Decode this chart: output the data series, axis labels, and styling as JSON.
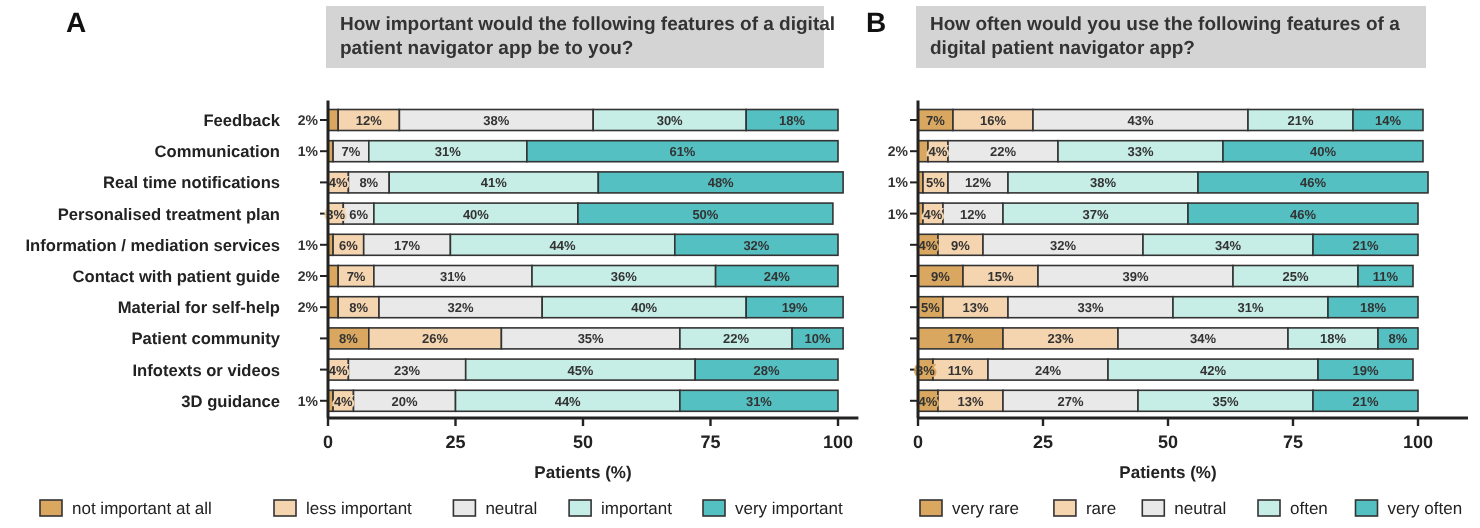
{
  "chart_data": [
    {
      "type": "bar",
      "orientation": "horizontal",
      "stacked": true,
      "title": "A",
      "subtitle": "How important would the following features of a digital patient navigator app be to you?",
      "xlabel": "Patients (%)",
      "categories": [
        "Feedback",
        "Communication",
        "Real time notifications",
        "Personalised treatment plan",
        "Information / mediation services",
        "Contact with patient guide",
        "Material for self-help",
        "Patient community",
        "Infotexts or videos",
        "3D guidance"
      ],
      "xlim": [
        0,
        104
      ],
      "xticks": [
        0,
        25,
        50,
        75,
        100
      ],
      "grid": false,
      "legend": "bottom",
      "series": [
        {
          "name": "not important at all",
          "color": "#d9a760",
          "values": [
            2,
            1,
            0,
            0,
            1,
            2,
            2,
            8,
            0,
            1
          ],
          "value_labels": [
            "2%",
            "1%",
            null,
            null,
            "1%",
            "2%",
            "2%",
            "8%",
            null,
            "1%"
          ]
        },
        {
          "name": "less important",
          "color": "#f5d5b0",
          "values": [
            12,
            0,
            4,
            3,
            6,
            7,
            8,
            26,
            4,
            4
          ],
          "value_labels": [
            "12%",
            null,
            "4%",
            "3%",
            "6%",
            "7%",
            "8%",
            "26%",
            "4%",
            "4%"
          ]
        },
        {
          "name": "neutral",
          "color": "#e9e9e9",
          "values": [
            38,
            7,
            8,
            6,
            17,
            31,
            32,
            35,
            23,
            20
          ],
          "value_labels": [
            "38%",
            "7%",
            "8%",
            "6%",
            "17%",
            "31%",
            "32%",
            "35%",
            "23%",
            "20%"
          ]
        },
        {
          "name": "important",
          "color": "#c6eee7",
          "values": [
            30,
            31,
            41,
            40,
            44,
            36,
            40,
            22,
            45,
            44
          ],
          "value_labels": [
            "30%",
            "31%",
            "41%",
            "40%",
            "44%",
            "36%",
            "40%",
            "22%",
            "45%",
            "44%"
          ]
        },
        {
          "name": "very important",
          "color": "#55c0c2",
          "values": [
            18,
            61,
            48,
            50,
            32,
            24,
            19,
            10,
            28,
            31
          ],
          "value_labels": [
            "18%",
            "61%",
            "48%",
            "50%",
            "32%",
            "24%",
            "19%",
            "10%",
            "28%",
            "31%"
          ]
        }
      ]
    },
    {
      "type": "bar",
      "orientation": "horizontal",
      "stacked": true,
      "title": "B",
      "subtitle": "How often would you use the following features of a digital patient navigator app?",
      "xlabel": "Patients (%)",
      "categories": [
        null,
        null,
        null,
        null,
        null,
        null,
        null,
        null,
        null,
        null
      ],
      "tick_labels": "x",
      "xlim": [
        0,
        110
      ],
      "xticks": [
        0,
        25,
        50,
        75,
        100
      ],
      "grid": false,
      "legend": "bottom",
      "series": [
        {
          "name": "very rare",
          "color": "#d9a760",
          "values": [
            7,
            2,
            1,
            1,
            4,
            9,
            5,
            17,
            3,
            4
          ],
          "value_labels": [
            "7%",
            "2%",
            "1%",
            "1%",
            "4%",
            "9%",
            "5%",
            "17%",
            "3%",
            "4%"
          ]
        },
        {
          "name": "rare",
          "color": "#f5d5b0",
          "values": [
            16,
            4,
            5,
            4,
            9,
            15,
            13,
            23,
            11,
            13
          ],
          "value_labels": [
            "16%",
            "4%",
            "5%",
            "4%",
            "9%",
            "15%",
            "13%",
            "23%",
            "11%",
            "13%"
          ]
        },
        {
          "name": "neutral",
          "color": "#e9e9e9",
          "values": [
            43,
            22,
            12,
            12,
            32,
            39,
            33,
            34,
            24,
            27
          ],
          "value_labels": [
            "43%",
            "22%",
            "12%",
            "12%",
            "32%",
            "39%",
            "33%",
            "34%",
            "24%",
            "27%"
          ]
        },
        {
          "name": "often",
          "color": "#c6eee7",
          "values": [
            21,
            33,
            38,
            37,
            34,
            25,
            31,
            18,
            42,
            35
          ],
          "value_labels": [
            "21%",
            "33%",
            "38%",
            "37%",
            "34%",
            "25%",
            "31%",
            "18%",
            "42%",
            "35%"
          ]
        },
        {
          "name": "very often",
          "color": "#55c0c2",
          "values": [
            14,
            40,
            46,
            46,
            21,
            11,
            18,
            8,
            19,
            21
          ],
          "value_labels": [
            "14%",
            "40%",
            "46%",
            "46%",
            "21%",
            "11%",
            "18%",
            "8%",
            "19%",
            "21%"
          ]
        }
      ]
    }
  ]
}
